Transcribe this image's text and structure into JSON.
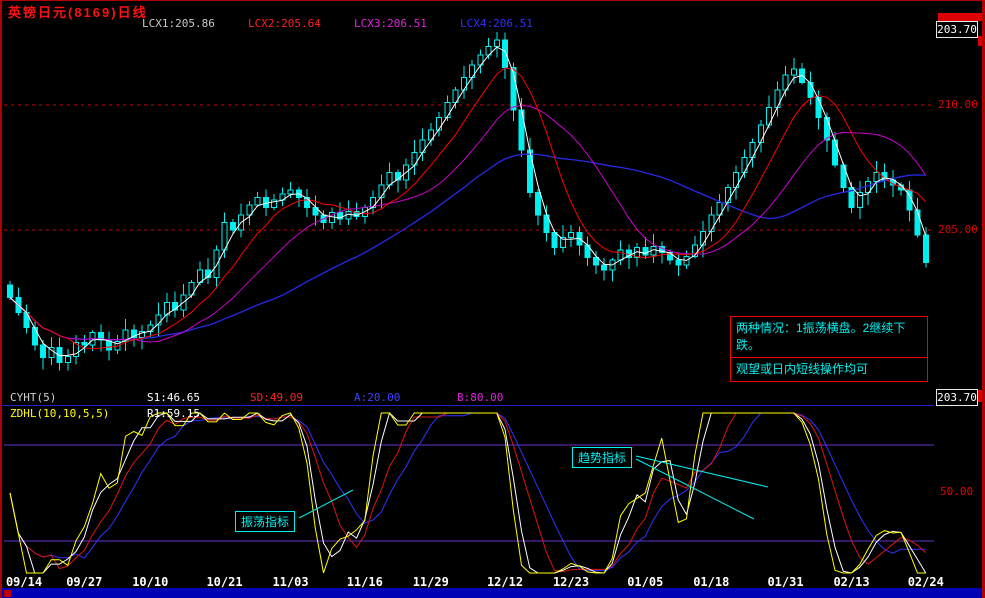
{
  "window": {
    "title": "英镑日元(8169)日线"
  },
  "theme": {
    "background": "#000000",
    "title_red": "#ff1010",
    "candle_cyan": "#00f0f0",
    "grid_red": "#c80000",
    "axis_label_red": "#e00000",
    "threshold_purple": "#6633cc",
    "divider_blue": "#2222cc",
    "annotation_cyan": "#00f0f0",
    "annotation_border_red": "#f00000",
    "taskbar_blue": "#0000b4"
  },
  "main_chart": {
    "legend": [
      {
        "name": "lcx1-value",
        "label": "LCX1:205.86",
        "color": "#c8c8c8"
      },
      {
        "name": "lcx2-value",
        "label": "LCX2:205.64",
        "color": "#ff2020"
      },
      {
        "name": "lcx3-value",
        "label": "LCX3:206.51",
        "color": "#e020e0"
      },
      {
        "name": "lcx4-value",
        "label": "LCX4:206.51",
        "color": "#3030ff"
      }
    ],
    "price_marker_top": "203.70",
    "gridlines": [
      {
        "value": 210,
        "label": "210.00"
      },
      {
        "value": 205,
        "label": "205.00"
      }
    ],
    "annotation": {
      "lines": [
        "两种情况：1振荡横盘。2继续下跌。",
        "观望或日内短线操作均可"
      ]
    }
  },
  "indicator_panel": {
    "params_line1": [
      {
        "name": "indicator-name-cyht",
        "label": "CYHT(5)",
        "color": "#d0d0d0"
      },
      {
        "name": "param-s1",
        "label": "S1:46.65",
        "color": "#ffffff"
      },
      {
        "name": "param-sd",
        "label": "SD:49.09",
        "color": "#ff2020"
      },
      {
        "name": "param-a",
        "label": "A:20.00",
        "color": "#4040ff"
      },
      {
        "name": "param-b",
        "label": "B:80.00",
        "color": "#e020e0"
      }
    ],
    "params_line2": [
      {
        "name": "indicator-name-zdhl",
        "label": "ZDHL(10,10,5,5)",
        "color": "#ffff00"
      },
      {
        "name": "param-r1",
        "label": "R1:59.15",
        "color": "#ffffff"
      }
    ],
    "price_marker": "203.70",
    "axis_label_50": "50.00",
    "labels": [
      {
        "text": "振荡指标"
      },
      {
        "text": "趋势指标"
      }
    ]
  },
  "x_axis": {
    "dates": [
      "09/14",
      "09/27",
      "10/10",
      "10/21",
      "11/03",
      "11/16",
      "11/29",
      "12/12",
      "12/23",
      "01/05",
      "01/18",
      "01/31",
      "02/13",
      "02/24"
    ]
  },
  "chart_data": {
    "type": "candlestick",
    "title": "英镑日元(8169)日线 (GBP/JPY daily)",
    "ylim_main": [
      199.0,
      213.5
    ],
    "x_labels": [
      "09/14",
      "09/27",
      "10/10",
      "10/21",
      "11/03",
      "11/16",
      "11/29",
      "12/12",
      "12/23",
      "01/05",
      "01/18",
      "01/31",
      "02/13",
      "02/24"
    ],
    "first_open": 202.8,
    "open_rule": "open = previous close",
    "series": [
      {
        "name": "close",
        "values": [
          202.3,
          201.7,
          201.1,
          200.4,
          199.9,
          200.3,
          199.7,
          199.95,
          200.5,
          200.4,
          200.9,
          200.6,
          200.2,
          200.55,
          201.0,
          200.7,
          200.95,
          201.2,
          201.6,
          202.1,
          201.8,
          202.4,
          202.9,
          203.4,
          203.1,
          204.2,
          205.3,
          205.0,
          205.6,
          206.0,
          206.3,
          205.9,
          206.2,
          206.45,
          206.6,
          206.3,
          205.9,
          205.6,
          205.3,
          205.7,
          205.45,
          205.75,
          205.55,
          205.9,
          206.3,
          206.8,
          207.3,
          207.0,
          207.6,
          208.1,
          208.6,
          209.0,
          209.5,
          210.1,
          210.6,
          211.1,
          211.6,
          212.0,
          212.35,
          212.6,
          211.5,
          209.8,
          208.2,
          206.5,
          205.6,
          204.9,
          204.3,
          204.7,
          204.9,
          204.4,
          203.9,
          203.6,
          203.4,
          203.8,
          204.2,
          203.9,
          204.3,
          204.0,
          204.35,
          204.1,
          203.8,
          203.6,
          203.95,
          204.4,
          204.95,
          205.6,
          206.1,
          206.7,
          207.3,
          207.9,
          208.5,
          209.2,
          209.9,
          210.6,
          211.2,
          211.45,
          210.9,
          210.3,
          209.5,
          208.6,
          207.6,
          206.7,
          205.9,
          206.5,
          206.95,
          207.3,
          207.0,
          206.8,
          206.6,
          205.8,
          204.8,
          203.7
        ]
      }
    ],
    "overlays": [
      {
        "name": "LCX4",
        "window": 32,
        "color": "#2828e6",
        "width": 1.3
      },
      {
        "name": "LCX3",
        "window": 16,
        "color": "#cc00cc",
        "width": 1
      },
      {
        "name": "LCX2",
        "window": 8,
        "color": "#ff0000",
        "width": 1
      },
      {
        "name": "LCX1",
        "window": 3,
        "color": "#ffffff",
        "width": 1
      }
    ],
    "sub_chart": {
      "type": "line",
      "name": "CYHT(5) / ZDHL(10,10,5,5) oscillator",
      "range": [
        0,
        100
      ],
      "thresholds_drawn": [
        80,
        20
      ],
      "derived": "stochastic(10) of closes, smoothed 9/6/3/2",
      "lines": [
        {
          "name": "blue",
          "color": "#3232ff",
          "smooth": 9
        },
        {
          "name": "red",
          "color": "#dd1414",
          "smooth": 6
        },
        {
          "name": "white",
          "color": "#ffffff",
          "smooth": 3
        },
        {
          "name": "yellow",
          "color": "#ffff00",
          "smooth": 2
        }
      ]
    }
  }
}
